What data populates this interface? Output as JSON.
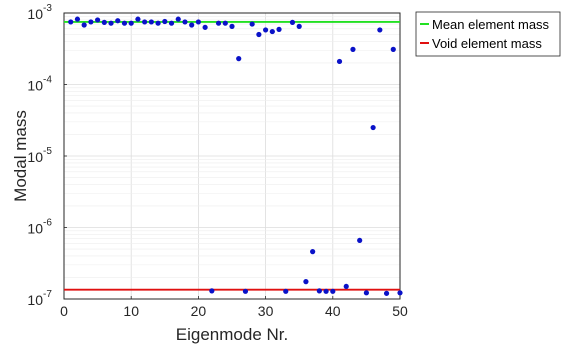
{
  "chart_data": {
    "type": "scatter",
    "title": "",
    "xlabel": "Eigenmode Nr.",
    "ylabel": "Modal mass",
    "xlim": [
      0,
      50
    ],
    "ylim_exponents": [
      -7,
      -3
    ],
    "y_scale": "log",
    "x_ticks": [
      "0",
      "10",
      "20",
      "30",
      "40",
      "50"
    ],
    "y_tick_bases": [
      "10",
      "10",
      "10",
      "10",
      "10"
    ],
    "y_tick_exponents": [
      "-7",
      "-6",
      "-5",
      "-4",
      "-3"
    ],
    "grid": true,
    "legend_position": "outside-right-top",
    "legend": [
      {
        "label": "Mean element mass",
        "color": "#22e022",
        "value": 0.00075
      },
      {
        "label": "Void element mass",
        "color": "#e01010",
        "value": 1.35e-07
      }
    ],
    "point_color": "#0a12c8",
    "points": [
      [
        1,
        0.00075
      ],
      [
        2,
        0.00082
      ],
      [
        3,
        0.00068
      ],
      [
        4,
        0.00075
      ],
      [
        5,
        0.0008
      ],
      [
        6,
        0.00074
      ],
      [
        7,
        0.00072
      ],
      [
        8,
        0.00078
      ],
      [
        9,
        0.00072
      ],
      [
        10,
        0.00072
      ],
      [
        11,
        0.00082
      ],
      [
        12,
        0.00075
      ],
      [
        13,
        0.00075
      ],
      [
        14,
        0.00072
      ],
      [
        15,
        0.00076
      ],
      [
        16,
        0.00072
      ],
      [
        17,
        0.00082
      ],
      [
        18,
        0.00075
      ],
      [
        19,
        0.00068
      ],
      [
        20,
        0.00075
      ],
      [
        21,
        0.00063
      ],
      [
        22,
        1.3e-07
      ],
      [
        23,
        0.00072
      ],
      [
        24,
        0.00072
      ],
      [
        25,
        0.00065
      ],
      [
        26,
        0.00023
      ],
      [
        27,
        1.28e-07
      ],
      [
        28,
        0.0007
      ],
      [
        29,
        0.0005
      ],
      [
        30,
        0.00058
      ],
      [
        31,
        0.00055
      ],
      [
        32,
        0.00059
      ],
      [
        33,
        1.28e-07
      ],
      [
        34,
        0.00074
      ],
      [
        35,
        0.00065
      ],
      [
        36,
        1.75e-07
      ],
      [
        37,
        4.6e-07
      ],
      [
        38,
        1.3e-07
      ],
      [
        39,
        1.28e-07
      ],
      [
        40,
        1.28e-07
      ],
      [
        41,
        0.00021
      ],
      [
        42,
        1.5e-07
      ],
      [
        43,
        0.00031
      ],
      [
        44,
        6.6e-07
      ],
      [
        45,
        1.22e-07
      ],
      [
        46,
        2.5e-05
      ],
      [
        47,
        0.00058
      ],
      [
        48,
        1.2e-07
      ],
      [
        49,
        0.00031
      ],
      [
        50,
        1.22e-07
      ]
    ]
  }
}
